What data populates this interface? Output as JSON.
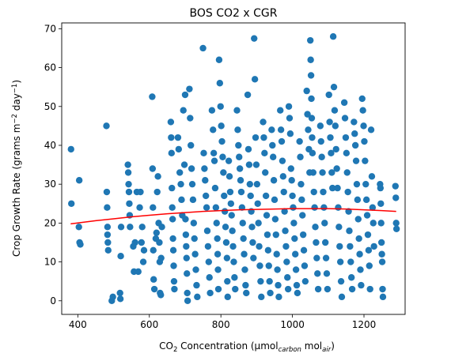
{
  "chart_data": {
    "type": "scatter",
    "title": "BOS CO2 x CGR",
    "xlabel": {
      "main": "CO",
      "sub2": "2",
      "rest": " Concentration (μmol",
      "sub_carbon": "carbon",
      "mid": " mol",
      "sub_air": "air",
      "end": ")"
    },
    "ylabel": {
      "main": "Crop Growth Rate (grams m",
      "sup1": "−2",
      "mid": " day",
      "sup2": "−1",
      "end": ")"
    },
    "xlim": [
      355,
      1315
    ],
    "ylim": [
      -3.5,
      71.5
    ],
    "xticks": [
      400,
      600,
      800,
      1000,
      1200
    ],
    "yticks": [
      0,
      10,
      20,
      30,
      40,
      50,
      60,
      70
    ],
    "grid": false,
    "colors": {
      "points": "#1f77b4",
      "fit": "#ff0000"
    },
    "fit_line": {
      "x": [
        380,
        450,
        500,
        550,
        600,
        650,
        700,
        750,
        800,
        850,
        900,
        950,
        1000,
        1050,
        1100,
        1150,
        1200,
        1250,
        1290
      ],
      "y": [
        19.8,
        20.6,
        21.1,
        21.6,
        22.0,
        22.4,
        22.7,
        23.0,
        23.2,
        23.4,
        23.5,
        23.6,
        23.7,
        23.7,
        23.7,
        23.6,
        23.4,
        23.2,
        23.0
      ]
    },
    "points": [
      [
        381,
        39
      ],
      [
        382,
        25
      ],
      [
        403,
        19
      ],
      [
        404,
        31
      ],
      [
        405,
        15
      ],
      [
        407,
        14.5
      ],
      [
        480,
        45
      ],
      [
        481,
        28
      ],
      [
        482,
        24
      ],
      [
        483,
        19
      ],
      [
        483,
        17
      ],
      [
        484,
        15
      ],
      [
        485,
        13
      ],
      [
        495,
        0
      ],
      [
        498,
        1
      ],
      [
        518,
        2
      ],
      [
        519,
        0.5
      ],
      [
        520,
        11.5
      ],
      [
        521,
        19
      ],
      [
        540,
        35
      ],
      [
        541,
        33
      ],
      [
        542,
        30
      ],
      [
        543,
        28
      ],
      [
        544,
        25
      ],
      [
        545,
        22
      ],
      [
        546,
        19
      ],
      [
        555,
        14
      ],
      [
        557,
        7.5
      ],
      [
        560,
        15
      ],
      [
        565,
        28
      ],
      [
        569,
        7.5
      ],
      [
        573,
        24
      ],
      [
        575,
        28
      ],
      [
        578,
        15
      ],
      [
        580,
        19
      ],
      [
        583,
        10
      ],
      [
        585,
        13
      ],
      [
        608,
        52.5
      ],
      [
        609,
        34
      ],
      [
        610,
        24
      ],
      [
        611,
        13
      ],
      [
        612,
        5.5
      ],
      [
        614,
        3
      ],
      [
        618,
        16
      ],
      [
        620,
        17.5
      ],
      [
        622,
        28
      ],
      [
        624,
        32
      ],
      [
        626,
        20
      ],
      [
        628,
        15
      ],
      [
        629,
        10
      ],
      [
        630,
        2
      ],
      [
        632,
        1.5
      ],
      [
        633,
        11
      ],
      [
        635,
        19
      ],
      [
        660,
        46
      ],
      [
        661,
        42
      ],
      [
        662,
        38
      ],
      [
        663,
        29
      ],
      [
        664,
        24
      ],
      [
        665,
        21
      ],
      [
        666,
        16
      ],
      [
        667,
        13
      ],
      [
        668,
        9
      ],
      [
        669,
        5
      ],
      [
        670,
        3
      ],
      [
        680,
        42
      ],
      [
        682,
        39
      ],
      [
        685,
        33
      ],
      [
        688,
        30
      ],
      [
        690,
        26
      ],
      [
        692,
        22
      ],
      [
        695,
        49
      ],
      [
        698,
        35
      ],
      [
        700,
        53
      ],
      [
        701,
        21
      ],
      [
        702,
        17
      ],
      [
        703,
        14
      ],
      [
        704,
        11
      ],
      [
        705,
        7
      ],
      [
        706,
        2
      ],
      [
        707,
        0
      ],
      [
        712,
        54.5
      ],
      [
        714,
        47
      ],
      [
        716,
        40
      ],
      [
        718,
        34
      ],
      [
        720,
        30
      ],
      [
        722,
        26
      ],
      [
        724,
        20
      ],
      [
        726,
        16
      ],
      [
        728,
        12
      ],
      [
        730,
        8
      ],
      [
        732,
        4
      ],
      [
        734,
        1
      ],
      [
        750,
        65
      ],
      [
        752,
        38
      ],
      [
        754,
        34
      ],
      [
        756,
        31
      ],
      [
        758,
        27
      ],
      [
        760,
        24
      ],
      [
        762,
        18
      ],
      [
        764,
        14
      ],
      [
        766,
        10
      ],
      [
        768,
        6
      ],
      [
        770,
        2
      ],
      [
        775,
        49
      ],
      [
        778,
        44
      ],
      [
        780,
        38
      ],
      [
        782,
        36
      ],
      [
        784,
        29
      ],
      [
        786,
        24
      ],
      [
        788,
        20
      ],
      [
        790,
        16
      ],
      [
        791,
        12
      ],
      [
        792,
        8
      ],
      [
        793,
        3
      ],
      [
        795,
        62
      ],
      [
        797,
        56
      ],
      [
        799,
        50
      ],
      [
        801,
        45
      ],
      [
        803,
        41
      ],
      [
        805,
        37
      ],
      [
        807,
        33
      ],
      [
        809,
        27
      ],
      [
        811,
        23
      ],
      [
        813,
        19
      ],
      [
        815,
        15
      ],
      [
        817,
        11
      ],
      [
        818,
        5
      ],
      [
        819,
        1
      ],
      [
        822,
        36
      ],
      [
        824,
        32
      ],
      [
        826,
        28
      ],
      [
        828,
        25
      ],
      [
        830,
        22
      ],
      [
        832,
        18
      ],
      [
        834,
        14
      ],
      [
        836,
        10
      ],
      [
        838,
        6
      ],
      [
        840,
        3
      ],
      [
        845,
        49
      ],
      [
        847,
        44
      ],
      [
        849,
        40
      ],
      [
        851,
        37
      ],
      [
        853,
        34
      ],
      [
        855,
        31
      ],
      [
        857,
        28
      ],
      [
        859,
        24
      ],
      [
        861,
        20
      ],
      [
        863,
        16
      ],
      [
        865,
        12
      ],
      [
        867,
        8
      ],
      [
        869,
        4
      ],
      [
        871,
        2
      ],
      [
        875,
        53
      ],
      [
        877,
        39
      ],
      [
        879,
        35
      ],
      [
        881,
        30
      ],
      [
        883,
        27
      ],
      [
        885,
        23
      ],
      [
        887,
        19
      ],
      [
        889,
        15
      ],
      [
        891,
        11
      ],
      [
        893,
        67.5
      ],
      [
        895,
        57
      ],
      [
        897,
        42
      ],
      [
        899,
        35
      ],
      [
        901,
        30
      ],
      [
        903,
        25
      ],
      [
        905,
        20
      ],
      [
        907,
        14
      ],
      [
        909,
        9
      ],
      [
        911,
        5
      ],
      [
        913,
        1
      ],
      [
        918,
        46
      ],
      [
        920,
        42
      ],
      [
        922,
        38
      ],
      [
        924,
        33
      ],
      [
        926,
        27
      ],
      [
        928,
        22
      ],
      [
        930,
        17
      ],
      [
        932,
        13
      ],
      [
        934,
        9
      ],
      [
        936,
        5
      ],
      [
        938,
        2
      ],
      [
        942,
        44
      ],
      [
        944,
        40
      ],
      [
        946,
        37
      ],
      [
        948,
        31
      ],
      [
        950,
        26
      ],
      [
        952,
        21
      ],
      [
        954,
        17
      ],
      [
        956,
        12
      ],
      [
        958,
        8
      ],
      [
        960,
        4
      ],
      [
        962,
        1
      ],
      [
        966,
        49
      ],
      [
        968,
        44
      ],
      [
        970,
        41
      ],
      [
        972,
        36
      ],
      [
        974,
        32
      ],
      [
        976,
        28
      ],
      [
        978,
        23
      ],
      [
        980,
        18
      ],
      [
        982,
        14
      ],
      [
        984,
        10
      ],
      [
        986,
        6
      ],
      [
        988,
        3
      ],
      [
        990,
        50
      ],
      [
        992,
        47
      ],
      [
        994,
        43
      ],
      [
        996,
        34
      ],
      [
        998,
        31
      ],
      [
        1000,
        27
      ],
      [
        1002,
        24
      ],
      [
        1004,
        20
      ],
      [
        1006,
        16
      ],
      [
        1008,
        12
      ],
      [
        1010,
        8
      ],
      [
        1012,
        4
      ],
      [
        1014,
        2
      ],
      [
        1020,
        41
      ],
      [
        1022,
        37
      ],
      [
        1024,
        30
      ],
      [
        1026,
        26
      ],
      [
        1028,
        22
      ],
      [
        1030,
        17
      ],
      [
        1032,
        13
      ],
      [
        1034,
        9
      ],
      [
        1036,
        5
      ],
      [
        1040,
        54
      ],
      [
        1042,
        48
      ],
      [
        1044,
        44
      ],
      [
        1046,
        39
      ],
      [
        1048,
        33
      ],
      [
        1050,
        67
      ],
      [
        1051,
        62
      ],
      [
        1052,
        58
      ],
      [
        1053,
        52
      ],
      [
        1054,
        47
      ],
      [
        1055,
        42
      ],
      [
        1056,
        38
      ],
      [
        1058,
        33
      ],
      [
        1060,
        28
      ],
      [
        1062,
        24
      ],
      [
        1064,
        19
      ],
      [
        1066,
        15
      ],
      [
        1068,
        11
      ],
      [
        1070,
        7
      ],
      [
        1072,
        3
      ],
      [
        1078,
        45
      ],
      [
        1080,
        41
      ],
      [
        1082,
        37
      ],
      [
        1084,
        33
      ],
      [
        1086,
        28
      ],
      [
        1088,
        24
      ],
      [
        1090,
        20
      ],
      [
        1092,
        15
      ],
      [
        1094,
        11
      ],
      [
        1096,
        7
      ],
      [
        1098,
        3
      ],
      [
        1102,
        53
      ],
      [
        1104,
        46
      ],
      [
        1106,
        42
      ],
      [
        1108,
        38
      ],
      [
        1110,
        33
      ],
      [
        1112,
        29
      ],
      [
        1114,
        68
      ],
      [
        1116,
        55
      ],
      [
        1118,
        49
      ],
      [
        1120,
        45
      ],
      [
        1122,
        39
      ],
      [
        1124,
        34
      ],
      [
        1126,
        29
      ],
      [
        1128,
        24
      ],
      [
        1130,
        19
      ],
      [
        1132,
        14
      ],
      [
        1134,
        10
      ],
      [
        1136,
        5
      ],
      [
        1138,
        1
      ],
      [
        1145,
        51
      ],
      [
        1147,
        47
      ],
      [
        1149,
        42
      ],
      [
        1151,
        38
      ],
      [
        1153,
        33
      ],
      [
        1155,
        28
      ],
      [
        1157,
        23
      ],
      [
        1159,
        18
      ],
      [
        1161,
        14
      ],
      [
        1163,
        10
      ],
      [
        1165,
        6
      ],
      [
        1167,
        3
      ],
      [
        1172,
        46
      ],
      [
        1174,
        43
      ],
      [
        1176,
        40
      ],
      [
        1178,
        36
      ],
      [
        1180,
        30
      ],
      [
        1182,
        26
      ],
      [
        1184,
        21
      ],
      [
        1186,
        16
      ],
      [
        1188,
        12
      ],
      [
        1190,
        8
      ],
      [
        1192,
        4
      ],
      [
        1195,
        52
      ],
      [
        1197,
        49
      ],
      [
        1199,
        45
      ],
      [
        1201,
        41
      ],
      [
        1203,
        36
      ],
      [
        1205,
        30
      ],
      [
        1207,
        26
      ],
      [
        1209,
        22
      ],
      [
        1211,
        17
      ],
      [
        1213,
        13
      ],
      [
        1215,
        9
      ],
      [
        1217,
        3
      ],
      [
        1220,
        44
      ],
      [
        1222,
        32
      ],
      [
        1224,
        24
      ],
      [
        1226,
        20
      ],
      [
        1228,
        14
      ],
      [
        1245,
        30
      ],
      [
        1246,
        29
      ],
      [
        1247,
        25
      ],
      [
        1248,
        20
      ],
      [
        1249,
        15
      ],
      [
        1250,
        12
      ],
      [
        1251,
        10
      ],
      [
        1252,
        3
      ],
      [
        1253,
        1
      ],
      [
        1288,
        29.5
      ],
      [
        1289,
        26.5
      ],
      [
        1290,
        20
      ],
      [
        1291,
        18.5
      ]
    ]
  }
}
